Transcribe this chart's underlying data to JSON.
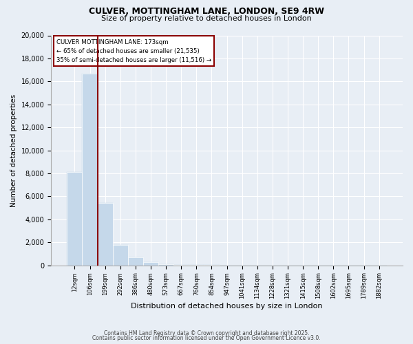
{
  "title_line1": "CULVER, MOTTINGHAM LANE, LONDON, SE9 4RW",
  "title_line2": "Size of property relative to detached houses in London",
  "xlabel": "Distribution of detached houses by size in London",
  "ylabel": "Number of detached properties",
  "annotation_text1": "CULVER MOTTINGHAM LANE: 173sqm",
  "annotation_text2": "← 65% of detached houses are smaller (21,535)",
  "annotation_text3": "35% of semi-detached houses are larger (11,516) →",
  "categories": [
    "12sqm",
    "106sqm",
    "199sqm",
    "292sqm",
    "386sqm",
    "480sqm",
    "573sqm",
    "667sqm",
    "760sqm",
    "854sqm",
    "947sqm",
    "1041sqm",
    "1134sqm",
    "1228sqm",
    "1321sqm",
    "1415sqm",
    "1508sqm",
    "1602sqm",
    "1695sqm",
    "1789sqm",
    "1882sqm"
  ],
  "bar_values": [
    8100,
    16700,
    5400,
    1800,
    680,
    250,
    90,
    45,
    20,
    10,
    5,
    2,
    1,
    0.5,
    0.3,
    0.2,
    0.1,
    0.05,
    0.02,
    0.01,
    0.005
  ],
  "bar_color": "#c5d8ea",
  "property_line_color": "#8b0000",
  "annotation_box_edge": "#8b0000",
  "annotation_box_fill": "white",
  "background_color": "#e8eef5",
  "grid_color": "#ffffff",
  "ylim": [
    0,
    20000
  ],
  "yticks": [
    0,
    2000,
    4000,
    6000,
    8000,
    10000,
    12000,
    14000,
    16000,
    18000,
    20000
  ],
  "property_line_x": 1.5,
  "footer_text1": "Contains HM Land Registry data © Crown copyright and database right 2025.",
  "footer_text2": "Contains public sector information licensed under the Open Government Licence v3.0."
}
